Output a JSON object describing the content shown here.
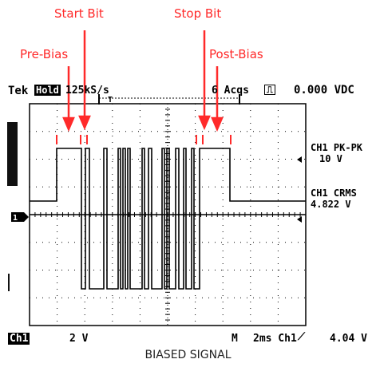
{
  "annotations": {
    "start_bit": "Start Bit",
    "stop_bit": "Stop Bit",
    "pre_bias": "Pre-Bias",
    "post_bias": "Post-Bias"
  },
  "header": {
    "brand": "Tek",
    "hold_tag": "Hold",
    "sample_rate": "125kS/s",
    "acqs": "6 Acqs",
    "dc_value": "0.000 VDC"
  },
  "measurements": {
    "pk_label": "CH1 PK-PK",
    "pk_value": "10 V",
    "rms_label": "CH1 CRMS",
    "rms_value": "4.822 V"
  },
  "footer": {
    "channel_tag": "Ch1",
    "volts_div": "2 V",
    "timebase_label": "M",
    "timebase_value": "2ms Ch1",
    "trigger_level": "4.04 V"
  },
  "channel_marker": "1",
  "caption": "BIASED SIGNAL",
  "colors": {
    "annotation": "#ff2a2a",
    "trace": "#000000",
    "grid": "#000000"
  }
}
